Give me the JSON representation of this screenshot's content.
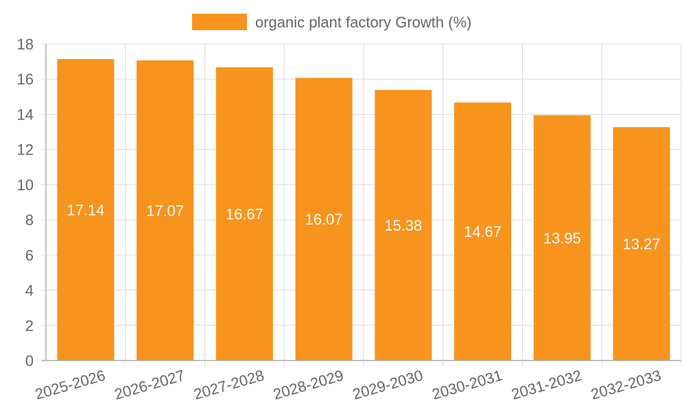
{
  "chart_data": {
    "type": "bar",
    "title": "",
    "xlabel": "",
    "ylabel": "",
    "categories": [
      "2025-2026",
      "2026-2027",
      "2027-2028",
      "2028-2029",
      "2029-2030",
      "2030-2031",
      "2031-2032",
      "2032-2033"
    ],
    "series": [
      {
        "name": "organic plant factory Growth (%)",
        "values": [
          17.14,
          17.07,
          16.67,
          16.07,
          15.38,
          14.67,
          13.95,
          13.27
        ]
      }
    ],
    "value_labels": [
      "17.14",
      "17.07",
      "16.67",
      "16.07",
      "15.38",
      "14.67",
      "13.95",
      "13.27"
    ],
    "ylim": [
      0,
      18
    ],
    "y_ticks": [
      0,
      2,
      4,
      6,
      8,
      10,
      12,
      14,
      16,
      18
    ],
    "y_tick_labels": [
      "0",
      "2",
      "4",
      "6",
      "8",
      "10",
      "12",
      "14",
      "16",
      "18"
    ],
    "grid": true,
    "legend_position": "top-center",
    "colors": {
      "bar": "#f7941d",
      "grid": "#d9d9d9",
      "axis": "#aaaaaa",
      "text": "#666666",
      "label": "#ffffff"
    }
  }
}
